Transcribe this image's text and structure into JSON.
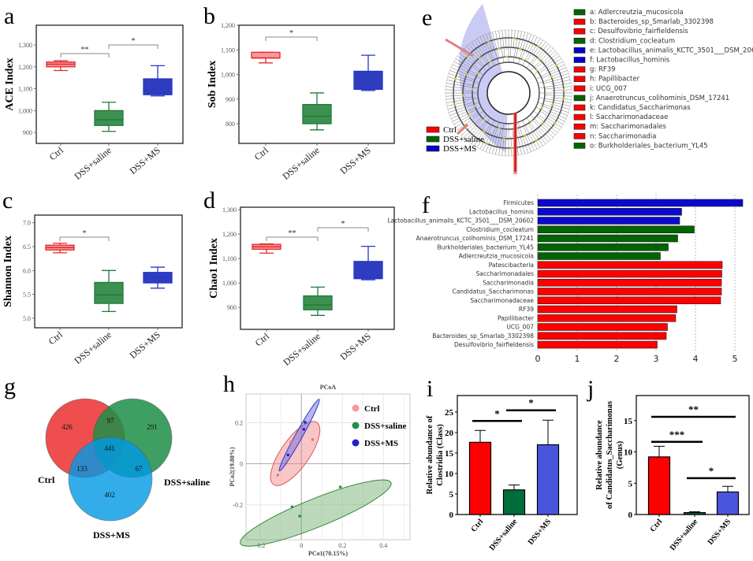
{
  "groups": [
    "Ctrl",
    "DSS+saline",
    "DSS+MS"
  ],
  "colors": {
    "ctrl": "#e8262a",
    "saline": "#1f7a3a",
    "ms": "#2a36c8",
    "ctrl_fill": "#f49a9a",
    "saline_fill": "#3d9150",
    "ms_fill": "#2e3cc0"
  },
  "chart_data": [
    {
      "panel": "a",
      "type": "box",
      "ylabel": "ACE Index",
      "categories": [
        "Ctrl",
        "DSS+saline",
        "DSS+MS"
      ],
      "yticks": [
        "900",
        "1,000",
        "1,100",
        "1,200",
        "1,300"
      ],
      "ylim": [
        850,
        1390
      ],
      "boxes": [
        {
          "min": 1183,
          "q1": 1200,
          "median": 1212,
          "q3": 1222,
          "max": 1228
        },
        {
          "min": 905,
          "q1": 932,
          "median": 958,
          "q3": 1000,
          "max": 1038
        },
        {
          "min": 1067,
          "q1": 1073,
          "median": 1073,
          "q3": 1145,
          "max": 1205
        }
      ],
      "significance": [
        {
          "from": 0,
          "to": 1,
          "label": "**"
        },
        {
          "from": 1,
          "to": 2,
          "label": "*"
        }
      ]
    },
    {
      "panel": "b",
      "type": "box",
      "ylabel": "Sob Index",
      "categories": [
        "Ctrl",
        "DSS+saline",
        "DSS+MS"
      ],
      "yticks": [
        "800",
        "900",
        "1,000",
        "1,100",
        "1,200"
      ],
      "ylim": [
        720,
        1200
      ],
      "boxes": [
        {
          "min": 1047,
          "q1": 1067,
          "median": 1067,
          "q3": 1090,
          "max": 1090
        },
        {
          "min": 775,
          "q1": 800,
          "median": 830,
          "q3": 878,
          "max": 925
        },
        {
          "min": 935,
          "q1": 940,
          "median": 940,
          "q3": 1013,
          "max": 1078
        }
      ],
      "significance": [
        {
          "from": 0,
          "to": 1,
          "label": "*"
        }
      ]
    },
    {
      "panel": "c",
      "type": "box",
      "ylabel": "Shannon Index",
      "categories": [
        "Ctrl",
        "DSS+saline",
        "DSS+MS"
      ],
      "yticks": [
        "5.0",
        "5.5",
        "6.0",
        "6.5",
        "7.0"
      ],
      "ylim": [
        4.8,
        7.16
      ],
      "boxes": [
        {
          "min": 6.37,
          "q1": 6.43,
          "median": 6.48,
          "q3": 6.53,
          "max": 6.57
        },
        {
          "min": 5.14,
          "q1": 5.31,
          "median": 5.49,
          "q3": 5.75,
          "max": 6.0
        },
        {
          "min": 5.63,
          "q1": 5.74,
          "median": 5.85,
          "q3": 5.96,
          "max": 6.07
        }
      ],
      "significance": [
        {
          "from": 0,
          "to": 1,
          "label": "*"
        }
      ]
    },
    {
      "panel": "d",
      "type": "box",
      "ylabel": "Chao1 Index",
      "categories": [
        "Ctrl",
        "DSS+saline",
        "DSS+MS"
      ],
      "yticks": [
        "900",
        "1,000",
        "1,100",
        "1,200",
        "1,300"
      ],
      "ylim": [
        810,
        1310
      ],
      "boxes": [
        {
          "min": 1122,
          "q1": 1138,
          "median": 1148,
          "q3": 1158,
          "max": 1160
        },
        {
          "min": 867,
          "q1": 890,
          "median": 910,
          "q3": 947,
          "max": 983
        },
        {
          "min": 1013,
          "q1": 1018,
          "median": 1018,
          "q3": 1088,
          "max": 1150
        }
      ],
      "significance": [
        {
          "from": 0,
          "to": 1,
          "label": "**"
        },
        {
          "from": 1,
          "to": 2,
          "label": "*"
        }
      ]
    },
    {
      "panel": "e",
      "type": "cladogram",
      "legend_groups": [
        {
          "label": "Ctrl",
          "color": "#ff0000"
        },
        {
          "label": "DSS+saline",
          "color": "#006400"
        },
        {
          "label": "DSS+MS",
          "color": "#0000cc"
        }
      ],
      "taxa": [
        {
          "key": "a",
          "name": "Adlercreutzia_mucosicola",
          "group": "saline"
        },
        {
          "key": "b",
          "name": "Bacteroides_sp_Smarlab_3302398",
          "group": "ctrl"
        },
        {
          "key": "c",
          "name": "Desulfovibrio_fairfieldensis",
          "group": "ctrl"
        },
        {
          "key": "d",
          "name": "Clostridium_cocleatum",
          "group": "saline"
        },
        {
          "key": "e",
          "name": "Lactobacillus_animalis_KCTC_3501___DSM_20602",
          "group": "ms"
        },
        {
          "key": "f",
          "name": "Lactobacillus_hominis",
          "group": "ms"
        },
        {
          "key": "g",
          "name": "RF39",
          "group": "ctrl"
        },
        {
          "key": "h",
          "name": "Papillibacter",
          "group": "ctrl"
        },
        {
          "key": "i",
          "name": "UCG_007",
          "group": "ctrl"
        },
        {
          "key": "j",
          "name": "Anaerotruncus_colihominis_DSM_17241",
          "group": "saline"
        },
        {
          "key": "k",
          "name": "Candidatus_Saccharimonas",
          "group": "ctrl"
        },
        {
          "key": "l",
          "name": "Saccharimonadaceae",
          "group": "ctrl"
        },
        {
          "key": "m",
          "name": "Saccharimonadales",
          "group": "ctrl"
        },
        {
          "key": "n",
          "name": "Saccharimonadia",
          "group": "ctrl"
        },
        {
          "key": "o",
          "name": "Burkholderiales_bacterium_YL45",
          "group": "saline"
        }
      ]
    },
    {
      "panel": "f",
      "type": "bar",
      "orientation": "horizontal",
      "xticks": [
        "0",
        "1",
        "2",
        "3",
        "4",
        "5"
      ],
      "xlim": [
        0,
        5.3
      ],
      "bars": [
        {
          "label": "Firmicutes",
          "value": 5.2,
          "group": "ms"
        },
        {
          "label": "Lactobacillus_hominis",
          "value": 3.65,
          "group": "ms"
        },
        {
          "label": "Lactobacillus_animalis_KCTC_3501___DSM_20602",
          "value": 3.6,
          "group": "ms"
        },
        {
          "label": "Clostridium_cocleatum",
          "value": 3.97,
          "group": "saline"
        },
        {
          "label": "Anaerotruncus_colihominis_DSM_17241",
          "value": 3.55,
          "group": "saline"
        },
        {
          "label": "Burkholderiales_bacterium_YL45",
          "value": 3.31,
          "group": "saline"
        },
        {
          "label": "Adlercreutzia_mucosicola",
          "value": 3.11,
          "group": "saline"
        },
        {
          "label": "Patescibacteria",
          "value": 4.68,
          "group": "ctrl"
        },
        {
          "label": "Saccharimonadales",
          "value": 4.67,
          "group": "ctrl"
        },
        {
          "label": "Saccharimonadia",
          "value": 4.66,
          "group": "ctrl"
        },
        {
          "label": "Candidatus_Saccharimonas",
          "value": 4.66,
          "group": "ctrl"
        },
        {
          "label": "Saccharimonadaceae",
          "value": 4.64,
          "group": "ctrl"
        },
        {
          "label": "RF39",
          "value": 3.53,
          "group": "ctrl"
        },
        {
          "label": "Papillibacter",
          "value": 3.5,
          "group": "ctrl"
        },
        {
          "label": "UCG_007",
          "value": 3.29,
          "group": "ctrl"
        },
        {
          "label": "Bacteroides_sp_Smarlab_3302398",
          "value": 3.26,
          "group": "ctrl"
        },
        {
          "label": "Desulfovibrio_fairfieldensis",
          "value": 3.03,
          "group": "ctrl"
        }
      ]
    },
    {
      "panel": "g",
      "type": "venn",
      "sets": [
        "Ctrl",
        "DSS+saline",
        "DSS+MS"
      ],
      "regions": {
        "ctrl_only": 426,
        "saline_only": 291,
        "ms_only": 402,
        "ctrl_saline": 97,
        "ctrl_ms": 133,
        "saline_ms": 67,
        "all": 441
      }
    },
    {
      "panel": "h",
      "type": "scatter",
      "title": "PCoA",
      "xlabel": "PCo1(70.15%)",
      "ylabel": "PCo2(19.80%)",
      "xticks": [
        "-0.2",
        "0",
        "0.2",
        "0.4"
      ],
      "yticks": [
        "-0.2",
        "0",
        "0.2"
      ],
      "xlim": [
        -0.27,
        0.53
      ],
      "ylim": [
        -0.37,
        0.34
      ],
      "series": [
        {
          "name": "Ctrl",
          "points": [
            [
              -0.05,
              0.105
            ],
            [
              0.055,
              0.118
            ],
            [
              -0.115,
              -0.055
            ]
          ]
        },
        {
          "name": "DSS+saline",
          "points": [
            [
              -0.045,
              -0.21
            ],
            [
              -0.008,
              -0.255
            ],
            [
              0.19,
              -0.113
            ]
          ]
        },
        {
          "name": "DSS+MS",
          "points": [
            [
              0.018,
              0.202
            ],
            [
              0.012,
              0.168
            ],
            [
              -0.065,
              0.043
            ]
          ]
        }
      ]
    },
    {
      "panel": "i",
      "type": "bar",
      "ylabel": "Relative abundance of Clostridia (Class)",
      "categories": [
        "Ctrl",
        "DSS+saline",
        "DSS+MS"
      ],
      "values": [
        17.6,
        6.0,
        17.0
      ],
      "errors": [
        2.9,
        1.2,
        6.0
      ],
      "yticks": [
        "0",
        "5",
        "10",
        "15",
        "20",
        "25"
      ],
      "ylim": [
        0,
        29
      ],
      "significance": [
        {
          "from": 0,
          "to": 1,
          "label": "*",
          "y": 22.8
        },
        {
          "from": 1,
          "to": 2,
          "label": "*",
          "y": 25.4
        }
      ]
    },
    {
      "panel": "j",
      "type": "bar",
      "ylabel": "Relative abundance of Candidatus_Saccharimonas (Genus)",
      "categories": [
        "Ctrl",
        "DSS+saline",
        "DSS+MS"
      ],
      "values": [
        9.2,
        0.3,
        3.6
      ],
      "errors": [
        1.7,
        0.15,
        0.9
      ],
      "yticks": [
        "0",
        "5",
        "10",
        "15"
      ],
      "ylim": [
        0,
        19
      ],
      "significance": [
        {
          "from": 0,
          "to": 1,
          "label": "***",
          "y": 11.6
        },
        {
          "from": 1,
          "to": 2,
          "label": "*",
          "y": 5.8
        },
        {
          "from": 0,
          "to": 2,
          "label": "**",
          "y": 15.6
        }
      ]
    }
  ]
}
